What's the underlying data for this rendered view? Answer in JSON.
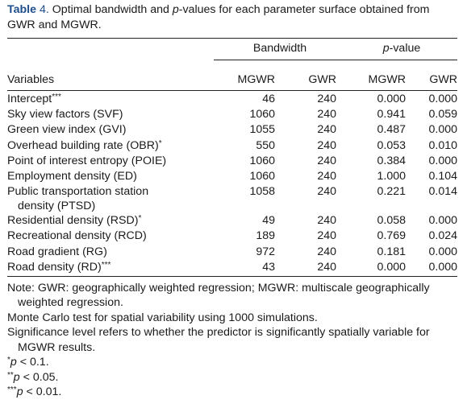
{
  "caption": {
    "label": "Table",
    "number": "4.",
    "text_before_p": "Optimal bandwidth and",
    "p_italic": "p",
    "text_after_p": "-values for each parameter surface obtained from GWR and MGWR."
  },
  "header": {
    "group_bandwidth": "Bandwidth",
    "group_pvalue_italic": "p",
    "group_pvalue_rest": "-value",
    "col_variables": "Variables",
    "col_bw_mgwr": "MGWR",
    "col_bw_gwr": "GWR",
    "col_p_mgwr": "MGWR",
    "col_p_gwr": "GWR"
  },
  "rows": [
    {
      "label": "Intercept",
      "sup": "***",
      "bw_mgwr": "46",
      "bw_gwr": "240",
      "p_mgwr": "0.000",
      "p_gwr": "0.000"
    },
    {
      "label": "Sky view factors (SVF)",
      "sup": "",
      "bw_mgwr": "1060",
      "bw_gwr": "240",
      "p_mgwr": "0.941",
      "p_gwr": "0.059"
    },
    {
      "label": "Green view index (GVI)",
      "sup": "",
      "bw_mgwr": "1055",
      "bw_gwr": "240",
      "p_mgwr": "0.487",
      "p_gwr": "0.000"
    },
    {
      "label": "Overhead building rate (OBR)",
      "sup": "*",
      "bw_mgwr": "550",
      "bw_gwr": "240",
      "p_mgwr": "0.053",
      "p_gwr": "0.010"
    },
    {
      "label": "Point of interest entropy (POIE)",
      "sup": "",
      "bw_mgwr": "1060",
      "bw_gwr": "240",
      "p_mgwr": "0.384",
      "p_gwr": "0.000"
    },
    {
      "label": "Employment density (ED)",
      "sup": "",
      "bw_mgwr": "1060",
      "bw_gwr": "240",
      "p_mgwr": "1.000",
      "p_gwr": "0.104"
    },
    {
      "label": "Public transportation station",
      "label2": "density (PTSD)",
      "sup": "",
      "bw_mgwr": "1058",
      "bw_gwr": "240",
      "p_mgwr": "0.221",
      "p_gwr": "0.014"
    },
    {
      "label": "Residential density (RSD)",
      "sup": "*",
      "bw_mgwr": "49",
      "bw_gwr": "240",
      "p_mgwr": "0.058",
      "p_gwr": "0.000"
    },
    {
      "label": "Recreational density (RCD)",
      "sup": "",
      "bw_mgwr": "189",
      "bw_gwr": "240",
      "p_mgwr": "0.769",
      "p_gwr": "0.024"
    },
    {
      "label": "Road gradient (RG)",
      "sup": "",
      "bw_mgwr": "972",
      "bw_gwr": "240",
      "p_mgwr": "0.181",
      "p_gwr": "0.000"
    },
    {
      "label": "Road density (RD)",
      "sup": "***",
      "bw_mgwr": "43",
      "bw_gwr": "240",
      "p_mgwr": "0.000",
      "p_gwr": "0.000"
    }
  ],
  "notes": {
    "note1": "Note: GWR: geographically weighted regression; MGWR: multiscale geographically weighted regression.",
    "note2": "Monte Carlo test for spatial variability using 1000 simulations.",
    "note3": "Significance level refers to whether the predictor is significantly spatially variable for MGWR results.",
    "sig1_sup": "*",
    "sig1_p": "p",
    "sig1_rest": " < 0.1.",
    "sig2_sup": "**",
    "sig2_p": "p",
    "sig2_rest": " < 0.05.",
    "sig3_sup": "***",
    "sig3_p": "p",
    "sig3_rest": " < 0.01."
  }
}
